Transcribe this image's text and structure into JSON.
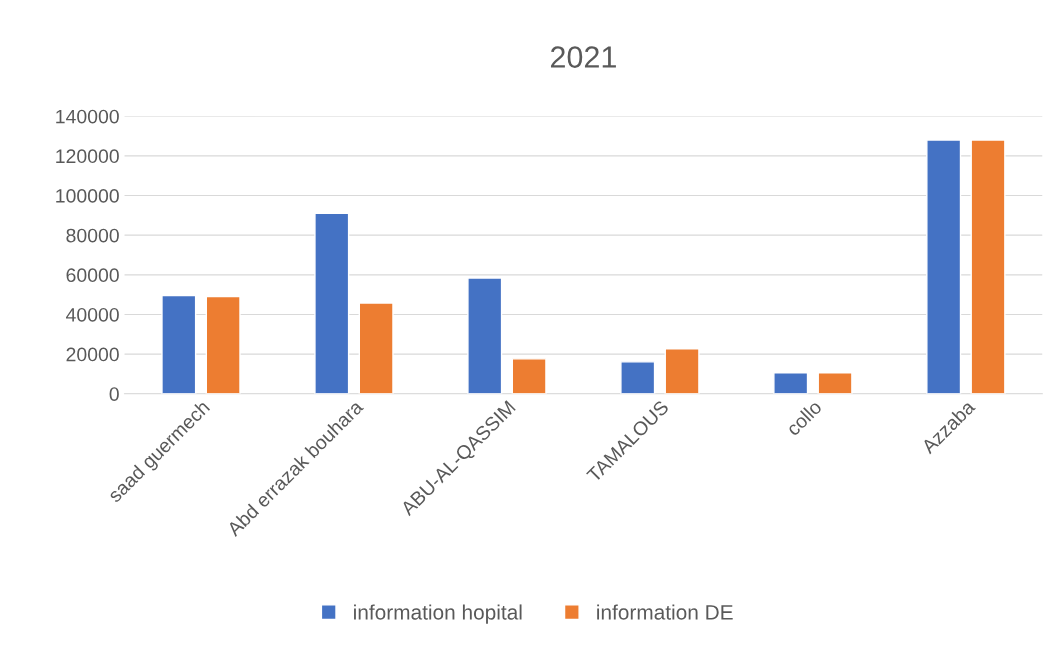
{
  "chart_data": {
    "type": "bar",
    "title": "2021",
    "categories": [
      "saad guermech",
      "Abd errazak bouhara",
      "ABU-AL-QASSIM",
      "TAMALOUS",
      "collo",
      "Azzaba"
    ],
    "series": [
      {
        "name": "information hopital",
        "color": "#4472c4",
        "values": [
          49500,
          91000,
          58400,
          16100,
          10600,
          128000
        ]
      },
      {
        "name": "information DE",
        "color": "#ed7d31",
        "values": [
          49000,
          45800,
          17600,
          22700,
          10600,
          128000
        ]
      }
    ],
    "ylim": [
      0,
      140000
    ],
    "yticks": [
      0,
      20000,
      40000,
      60000,
      80000,
      100000,
      120000,
      140000
    ],
    "grid": "y",
    "legend": "bottom"
  }
}
